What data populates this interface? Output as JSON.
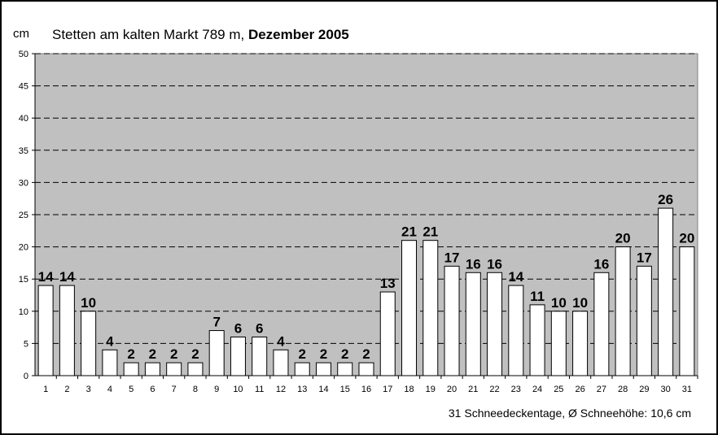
{
  "chart_data": {
    "type": "bar",
    "title": "Stetten am kalten Markt 789 m,",
    "title_bold": "Dezember 2005",
    "ylabel": "cm",
    "xlabel": "",
    "ylim": [
      0,
      50
    ],
    "yticks": [
      0,
      5,
      10,
      15,
      20,
      25,
      30,
      35,
      40,
      45,
      50
    ],
    "grid": true,
    "categories": [
      "1",
      "2",
      "3",
      "4",
      "5",
      "6",
      "7",
      "8",
      "9",
      "10",
      "11",
      "12",
      "13",
      "14",
      "15",
      "16",
      "17",
      "18",
      "19",
      "20",
      "21",
      "22",
      "23",
      "24",
      "25",
      "26",
      "27",
      "28",
      "29",
      "30",
      "31"
    ],
    "values": [
      14,
      14,
      10,
      4,
      2,
      2,
      2,
      2,
      7,
      6,
      6,
      4,
      2,
      2,
      2,
      2,
      13,
      21,
      21,
      17,
      16,
      16,
      14,
      11,
      10,
      10,
      16,
      20,
      17,
      26,
      20
    ],
    "footer": "31 Schneedeckentage,  Ø Schneehöhe:  10,6 cm",
    "colors": {
      "plot_bg": "#c0c0c0",
      "bar": "#ffffff",
      "grid": "#000000"
    }
  }
}
